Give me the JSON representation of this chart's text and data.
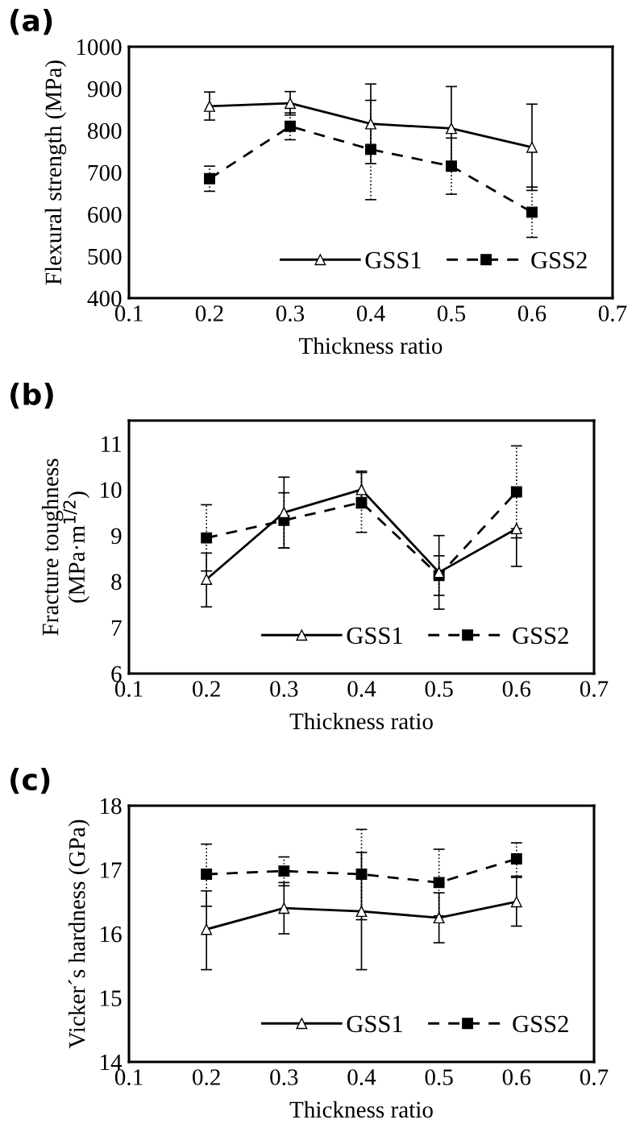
{
  "chart_data": [
    {
      "type": "line",
      "title": "(a)",
      "xlabel": "Thickness ratio",
      "ylabel": "Flexural strength (MPa)",
      "x": [
        0.2,
        0.3,
        0.4,
        0.5,
        0.6
      ],
      "xlim": [
        0.1,
        0.7
      ],
      "xticks": [
        0.1,
        0.2,
        0.3,
        0.4,
        0.5,
        0.6,
        0.7
      ],
      "ylim": [
        400,
        1000
      ],
      "yticks": [
        400,
        500,
        600,
        700,
        800,
        900,
        1000
      ],
      "grid": false,
      "legend": "bottom right",
      "series": [
        {
          "name": "GSS1",
          "color": "#000000",
          "marker": "triangle",
          "line_style": "solid",
          "values": [
            858,
            865,
            816,
            805,
            760
          ],
          "errors": [
            [
              825,
              892
            ],
            [
              837,
              893
            ],
            [
              721,
              911
            ],
            [
              705,
              905
            ],
            [
              657,
              863
            ]
          ]
        },
        {
          "name": "GSS2",
          "color": "#000000",
          "marker": "square",
          "line_style": "dashed",
          "values": [
            685,
            810,
            755,
            715,
            605
          ],
          "errors": [
            [
              655,
              715
            ],
            [
              778,
              842
            ],
            [
              635,
              872
            ],
            [
              648,
              782
            ],
            [
              545,
              665
            ]
          ]
        }
      ]
    },
    {
      "type": "line",
      "title": "(b)",
      "xlabel": "Thickness ratio",
      "ylabel": "Fracture toughness\n(MPa·m$^{1/2}$)",
      "x": [
        0.2,
        0.3,
        0.4,
        0.5,
        0.6
      ],
      "xlim": [
        0.1,
        0.7
      ],
      "xticks": [
        0.1,
        0.2,
        0.3,
        0.4,
        0.5,
        0.6,
        0.7
      ],
      "ylim": [
        6,
        11.5
      ],
      "yticks": [
        6,
        7,
        8,
        9,
        10,
        11
      ],
      "grid": false,
      "legend": "bottom right",
      "series": [
        {
          "name": "GSS1",
          "color": "#000000",
          "marker": "triangle",
          "line_style": "solid",
          "values": [
            8.05,
            9.5,
            10.0,
            8.2,
            9.15
          ],
          "errors": [
            [
              7.45,
              8.62
            ],
            [
              8.73,
              10.27
            ],
            [
              9.6,
              10.4
            ],
            [
              7.4,
              9.0
            ],
            [
              8.33,
              9.15
            ]
          ]
        },
        {
          "name": "GSS2",
          "color": "#000000",
          "marker": "square",
          "line_style": "dashed",
          "values": [
            8.95,
            9.33,
            9.72,
            8.13,
            9.95
          ],
          "errors": [
            [
              8.23,
              9.67
            ],
            [
              8.73,
              9.93
            ],
            [
              9.07,
              10.37
            ],
            [
              7.7,
              8.56
            ],
            [
              8.95,
              10.95
            ]
          ]
        }
      ]
    },
    {
      "type": "line",
      "title": "(c)",
      "xlabel": "Thickness ratio",
      "ylabel": "Vicker´s hardness (GPa)",
      "x": [
        0.2,
        0.3,
        0.4,
        0.5,
        0.6
      ],
      "xlim": [
        0.1,
        0.7
      ],
      "xticks": [
        0.1,
        0.2,
        0.3,
        0.4,
        0.5,
        0.6,
        0.7
      ],
      "ylim": [
        14,
        18
      ],
      "yticks": [
        14,
        15,
        16,
        17,
        18
      ],
      "grid": false,
      "legend": "bottom right",
      "series": [
        {
          "name": "GSS1",
          "color": "#000000",
          "marker": "triangle",
          "line_style": "solid",
          "values": [
            16.07,
            16.4,
            16.35,
            16.25,
            16.5
          ],
          "errors": [
            [
              15.44,
              16.67
            ],
            [
              16.0,
              16.8
            ],
            [
              15.44,
              17.27
            ],
            [
              15.86,
              16.64
            ],
            [
              16.12,
              16.88
            ]
          ]
        },
        {
          "name": "GSS2",
          "color": "#000000",
          "marker": "square",
          "line_style": "dashed",
          "values": [
            16.93,
            16.98,
            16.93,
            16.8,
            17.17
          ],
          "errors": [
            [
              16.43,
              17.4
            ],
            [
              16.75,
              17.2
            ],
            [
              16.22,
              17.63
            ],
            [
              16.28,
              17.32
            ],
            [
              16.9,
              17.42
            ]
          ]
        }
      ]
    }
  ]
}
